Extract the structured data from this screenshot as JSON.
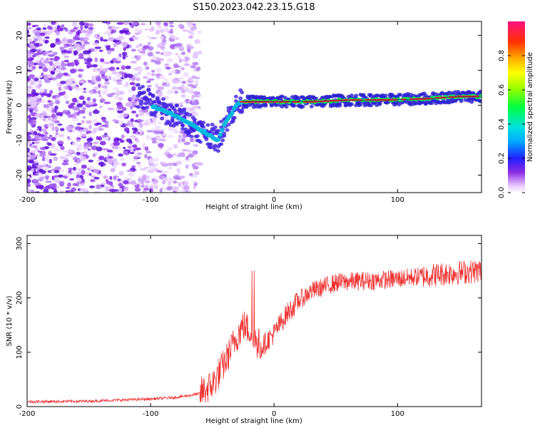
{
  "title": "S150.2023.042.23.15.G18",
  "colors": {
    "snr_line": "#f03030",
    "axes": "#000000",
    "ridge_core": "#ff2020"
  },
  "chart_data": [
    {
      "type": "heatmap",
      "xlabel": "Height of straight line (km)",
      "ylabel": "Frequency (Hz)",
      "xlim": [
        -200,
        168
      ],
      "ylim": [
        -25,
        24
      ],
      "xticks": [
        -200,
        -100,
        0,
        100
      ],
      "yticks": [
        -20,
        -10,
        0,
        10,
        20
      ],
      "colorbar": {
        "label": "Normalized spectral amplitude",
        "range": [
          0,
          1
        ],
        "ticks": [
          0.0,
          0.2,
          0.4,
          0.6,
          0.8
        ],
        "tick_labels": [
          "0.0",
          "0.2",
          "0.4",
          "0.6",
          "0.8"
        ]
      },
      "ridge": {
        "x": [
          -100,
          -90,
          -80,
          -70,
          -60,
          -55,
          -50,
          -45,
          -40,
          -35,
          -30,
          -27,
          -20,
          0,
          30,
          60,
          90,
          120,
          150,
          168
        ],
        "y": [
          0,
          -1.5,
          -3,
          -5,
          -7,
          -8,
          -9,
          -10,
          -5,
          -2.5,
          0,
          1,
          1,
          1,
          1,
          1.5,
          1.5,
          1.8,
          2.5,
          2.5
        ]
      }
    },
    {
      "type": "line",
      "xlabel": "Height of straight line (km)",
      "ylabel": "SNR (10 * v/v)",
      "xlim": [
        -200,
        168
      ],
      "ylim": [
        0,
        315
      ],
      "xticks": [
        -200,
        -100,
        0,
        100
      ],
      "yticks": [
        0,
        100,
        200,
        300
      ],
      "series": [
        {
          "x": [
            -200,
            -150,
            -100,
            -80,
            -70,
            -60,
            -50,
            -40,
            -30,
            -25,
            -20,
            -15,
            -10,
            0,
            10,
            20,
            30,
            40,
            50,
            60,
            80,
            100,
            120,
            140,
            168
          ],
          "values": [
            9,
            10,
            14,
            17,
            20,
            24,
            40,
            80,
            130,
            150,
            140,
            120,
            110,
            135,
            170,
            195,
            212,
            220,
            228,
            230,
            232,
            235,
            240,
            245,
            250
          ]
        }
      ]
    }
  ]
}
